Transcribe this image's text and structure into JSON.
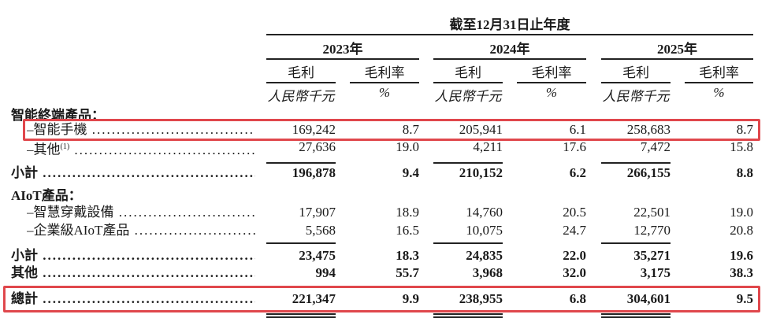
{
  "header": {
    "period": "截至12月31日止年度",
    "years": [
      "2023年",
      "2024年",
      "2025年"
    ],
    "col_gp": "毛利",
    "col_gm": "毛利率",
    "unit_gp": "人民幣千元",
    "unit_gm": "%"
  },
  "sections": {
    "smart": {
      "title": "智能終端產品："
    },
    "aiot": {
      "title": "AIoT產品："
    }
  },
  "rows": [
    {
      "label": "–智能手機",
      "values": [
        "169,242",
        "8.7",
        "205,941",
        "6.1",
        "258,683",
        "8.7"
      ]
    },
    {
      "label": "–其他",
      "note": "(1)",
      "values": [
        "27,636",
        "19.0",
        "4,211",
        "17.6",
        "7,472",
        "15.8"
      ]
    },
    {
      "label": "小計",
      "values": [
        "196,878",
        "9.4",
        "210,152",
        "6.2",
        "266,155",
        "8.8"
      ]
    },
    {
      "label": "–智慧穿戴設備",
      "values": [
        "17,907",
        "18.9",
        "14,760",
        "20.5",
        "22,501",
        "19.0"
      ]
    },
    {
      "label": "–企業級AIoT產品",
      "values": [
        "5,568",
        "16.5",
        "10,075",
        "24.7",
        "12,770",
        "20.8"
      ]
    },
    {
      "label": "小計",
      "values": [
        "23,475",
        "18.3",
        "24,835",
        "22.0",
        "35,271",
        "19.6"
      ]
    },
    {
      "label": "其他",
      "values": [
        "994",
        "55.7",
        "3,968",
        "32.0",
        "3,175",
        "38.3"
      ]
    },
    {
      "label": "總計",
      "values": [
        "221,347",
        "9.9",
        "238,955",
        "6.8",
        "304,601",
        "9.5"
      ]
    }
  ],
  "highlight_color": "#e0474c"
}
